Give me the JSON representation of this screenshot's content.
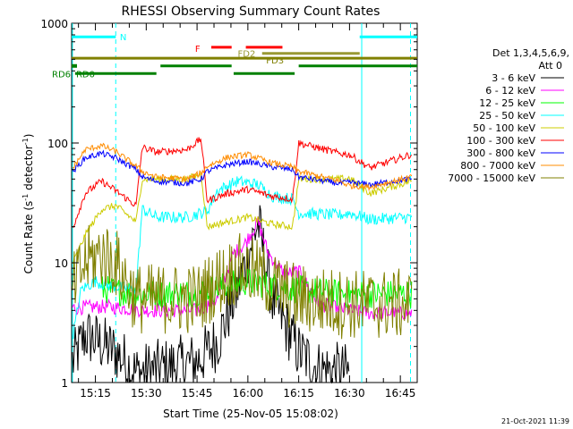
{
  "chart_data": {
    "type": "line",
    "title": "RHESSI Observing Summary Count Rates",
    "xlabel": "Start Time (25-Nov-05 15:08:02)",
    "ylabel_main": "Count Rate (s",
    "ylabel_sup1": "-1",
    "ylabel_mid": " detector",
    "ylabel_sup2": "-1",
    "ylabel_end": ")",
    "yscale": "log",
    "ylim": [
      1,
      1000
    ],
    "xlim_minutes": [
      15.133,
      16.833
    ],
    "x_tick_labels": [
      {
        "label": "15:15",
        "m": 15.25
      },
      {
        "label": "15:30",
        "m": 15.5
      },
      {
        "label": "15:45",
        "m": 15.75
      },
      {
        "label": "16:00",
        "m": 16.0
      },
      {
        "label": "16:15",
        "m": 16.25
      },
      {
        "label": "16:30",
        "m": 16.5
      },
      {
        "label": "16:45",
        "m": 16.75
      }
    ],
    "y_tick_labels": [
      {
        "label": "1",
        "v": 1
      },
      {
        "label": "10",
        "v": 10
      },
      {
        "label": "100",
        "v": 100
      },
      {
        "label": "1000",
        "v": 1000
      }
    ],
    "legend_header": [
      "Det 1,3,4,5,6,9,",
      "Att 0"
    ],
    "series": [
      {
        "name": "3 - 6 keV",
        "color": "#000000",
        "base": [
          [
            15.14,
            1.5
          ],
          [
            15.2,
            2.5
          ],
          [
            15.35,
            1.8
          ],
          [
            15.45,
            1.2
          ],
          [
            15.55,
            1.3
          ],
          [
            15.75,
            1.5
          ],
          [
            15.85,
            2.2
          ],
          [
            15.95,
            6
          ],
          [
            16.05,
            22
          ],
          [
            16.12,
            5
          ],
          [
            16.25,
            1.8
          ],
          [
            16.35,
            1.3
          ],
          [
            16.5,
            1.2
          ]
        ],
        "noise": 0.25,
        "x_end": 16.5
      },
      {
        "name": "6 - 12 keV",
        "color": "#ff00ff",
        "base": [
          [
            15.14,
            4.2
          ],
          [
            15.3,
            4.3
          ],
          [
            15.5,
            4.0
          ],
          [
            15.75,
            4.0
          ],
          [
            15.85,
            5
          ],
          [
            15.93,
            12
          ],
          [
            15.98,
            14
          ],
          [
            16.05,
            22
          ],
          [
            16.1,
            12
          ],
          [
            16.18,
            8
          ],
          [
            16.25,
            8.5
          ],
          [
            16.35,
            4.5
          ],
          [
            16.5,
            4.0
          ],
          [
            16.6,
            3.8
          ],
          [
            16.8,
            3.8
          ]
        ],
        "noise": 0.06
      },
      {
        "name": "12 - 25 keV",
        "color": "#00ff00",
        "base": [
          [
            15.14,
            6
          ],
          [
            15.3,
            6
          ],
          [
            15.45,
            5.5
          ],
          [
            15.5,
            5.5
          ],
          [
            15.75,
            5.6
          ],
          [
            15.9,
            6.5
          ],
          [
            16.0,
            7
          ],
          [
            16.1,
            6.5
          ],
          [
            16.25,
            6
          ],
          [
            16.45,
            5.5
          ],
          [
            16.5,
            5.5
          ],
          [
            16.6,
            5.5
          ],
          [
            16.8,
            5.5
          ]
        ],
        "noise": 0.12,
        "x_start": 15.28
      },
      {
        "name": "25 - 50 keV",
        "color": "#00ffff",
        "base": [
          [
            15.14,
            2.5
          ],
          [
            15.18,
            6
          ],
          [
            15.25,
            7
          ],
          [
            15.3,
            6.5
          ],
          [
            15.45,
            6
          ],
          [
            15.48,
            28
          ],
          [
            15.55,
            24
          ],
          [
            15.7,
            24
          ],
          [
            15.8,
            27
          ],
          [
            15.85,
            40
          ],
          [
            15.95,
            48
          ],
          [
            16.05,
            45
          ],
          [
            16.12,
            36
          ],
          [
            16.22,
            34
          ],
          [
            16.25,
            26
          ],
          [
            16.45,
            25
          ],
          [
            16.5,
            26
          ],
          [
            16.6,
            23
          ],
          [
            16.8,
            24
          ]
        ],
        "noise": 0.05
      },
      {
        "name": "50 - 100 keV",
        "color": "#cccc00",
        "base": [
          [
            15.14,
            10
          ],
          [
            15.2,
            17
          ],
          [
            15.28,
            28
          ],
          [
            15.35,
            30
          ],
          [
            15.45,
            22
          ],
          [
            15.48,
            50
          ],
          [
            15.55,
            50
          ],
          [
            15.7,
            50
          ],
          [
            15.77,
            55
          ],
          [
            15.8,
            20
          ],
          [
            15.9,
            22
          ],
          [
            16.0,
            24
          ],
          [
            16.12,
            21
          ],
          [
            16.22,
            20
          ],
          [
            16.25,
            50
          ],
          [
            16.45,
            50
          ],
          [
            16.5,
            51
          ],
          [
            16.6,
            38
          ],
          [
            16.8,
            48
          ]
        ],
        "noise": 0.03
      },
      {
        "name": "100 - 300 keV",
        "color": "#ff0000",
        "base": [
          [
            15.14,
            20
          ],
          [
            15.2,
            38
          ],
          [
            15.28,
            48
          ],
          [
            15.35,
            40
          ],
          [
            15.45,
            30
          ],
          [
            15.48,
            92
          ],
          [
            15.55,
            84
          ],
          [
            15.7,
            88
          ],
          [
            15.77,
            108
          ],
          [
            15.8,
            33
          ],
          [
            15.9,
            38
          ],
          [
            16.0,
            41
          ],
          [
            16.12,
            36
          ],
          [
            16.22,
            34
          ],
          [
            16.25,
            100
          ],
          [
            16.45,
            82
          ],
          [
            16.5,
            80
          ],
          [
            16.6,
            62
          ],
          [
            16.8,
            80
          ]
        ],
        "noise": 0.03
      },
      {
        "name": "300 - 800 keV",
        "color": "#0000ff",
        "base": [
          [
            15.14,
            58
          ],
          [
            15.2,
            75
          ],
          [
            15.28,
            82
          ],
          [
            15.35,
            75
          ],
          [
            15.45,
            60
          ],
          [
            15.48,
            52
          ],
          [
            15.55,
            48
          ],
          [
            15.7,
            46
          ],
          [
            15.77,
            50
          ],
          [
            15.8,
            58
          ],
          [
            15.9,
            66
          ],
          [
            16.0,
            70
          ],
          [
            16.12,
            63
          ],
          [
            16.22,
            60
          ],
          [
            16.25,
            52
          ],
          [
            16.45,
            46
          ],
          [
            16.5,
            47
          ],
          [
            16.6,
            45
          ],
          [
            16.8,
            50
          ]
        ],
        "noise": 0.025
      },
      {
        "name": "800 - 7000 keV",
        "color": "#ff8c00",
        "base": [
          [
            15.14,
            62
          ],
          [
            15.2,
            88
          ],
          [
            15.28,
            95
          ],
          [
            15.35,
            85
          ],
          [
            15.45,
            64
          ],
          [
            15.48,
            58
          ],
          [
            15.55,
            52
          ],
          [
            15.7,
            50
          ],
          [
            15.77,
            56
          ],
          [
            15.8,
            64
          ],
          [
            15.9,
            76
          ],
          [
            16.0,
            80
          ],
          [
            16.12,
            68
          ],
          [
            16.22,
            63
          ],
          [
            16.25,
            58
          ],
          [
            16.45,
            48
          ],
          [
            16.5,
            44
          ],
          [
            16.6,
            43
          ],
          [
            16.8,
            52
          ]
        ],
        "noise": 0.025
      },
      {
        "name": "7000 - 15000 keV",
        "color": "#808000",
        "base": [
          [
            15.14,
            6
          ],
          [
            15.2,
            10
          ],
          [
            15.28,
            12
          ],
          [
            15.35,
            10
          ],
          [
            15.45,
            5
          ],
          [
            15.5,
            5
          ],
          [
            15.75,
            5
          ],
          [
            15.85,
            7
          ],
          [
            15.95,
            9
          ],
          [
            16.05,
            8
          ],
          [
            16.15,
            6
          ],
          [
            16.25,
            5
          ],
          [
            16.5,
            4.5
          ],
          [
            16.6,
            4.5
          ],
          [
            16.8,
            4.5
          ]
        ],
        "noise": 0.3
      }
    ],
    "status_bars": [
      {
        "label": "N",
        "color": "#00ffff",
        "segments": [
          [
            15.133,
            15.35
          ],
          [
            16.55,
            16.833
          ]
        ],
        "v": 770
      },
      {
        "label": "F",
        "color": "#ff0000",
        "segments": [
          [
            15.82,
            15.92
          ],
          [
            15.99,
            16.17
          ]
        ],
        "v": 630
      },
      {
        "label": "FD2",
        "color": "#999933",
        "segments": [
          [
            16.07,
            16.55
          ]
        ],
        "v": 560
      },
      {
        "label": "FD3",
        "color": "#808000",
        "segments": [
          [
            15.133,
            16.833
          ]
        ],
        "v": 510
      },
      {
        "label": "",
        "color": "#008000",
        "segments": [
          [
            15.133,
            15.133
          ],
          [
            15.57,
            15.92
          ],
          [
            16.25,
            16.833
          ]
        ],
        "v": 440
      },
      {
        "label": "RD0",
        "color": "#008000",
        "segments": [
          [
            15.15,
            15.55
          ],
          [
            15.93,
            16.23
          ]
        ],
        "v": 380
      }
    ],
    "rd6_label": "RD6",
    "verticals": [
      {
        "m": 15.137,
        "color": "#00ffff",
        "dash": false
      },
      {
        "m": 15.35,
        "color": "#00ffff",
        "dash": true
      },
      {
        "m": 16.56,
        "color": "#00ffff",
        "dash": false
      },
      {
        "m": 16.8,
        "color": "#00ffff",
        "dash": true
      }
    ]
  },
  "footer_date": "21-Oct-2021 11:39"
}
